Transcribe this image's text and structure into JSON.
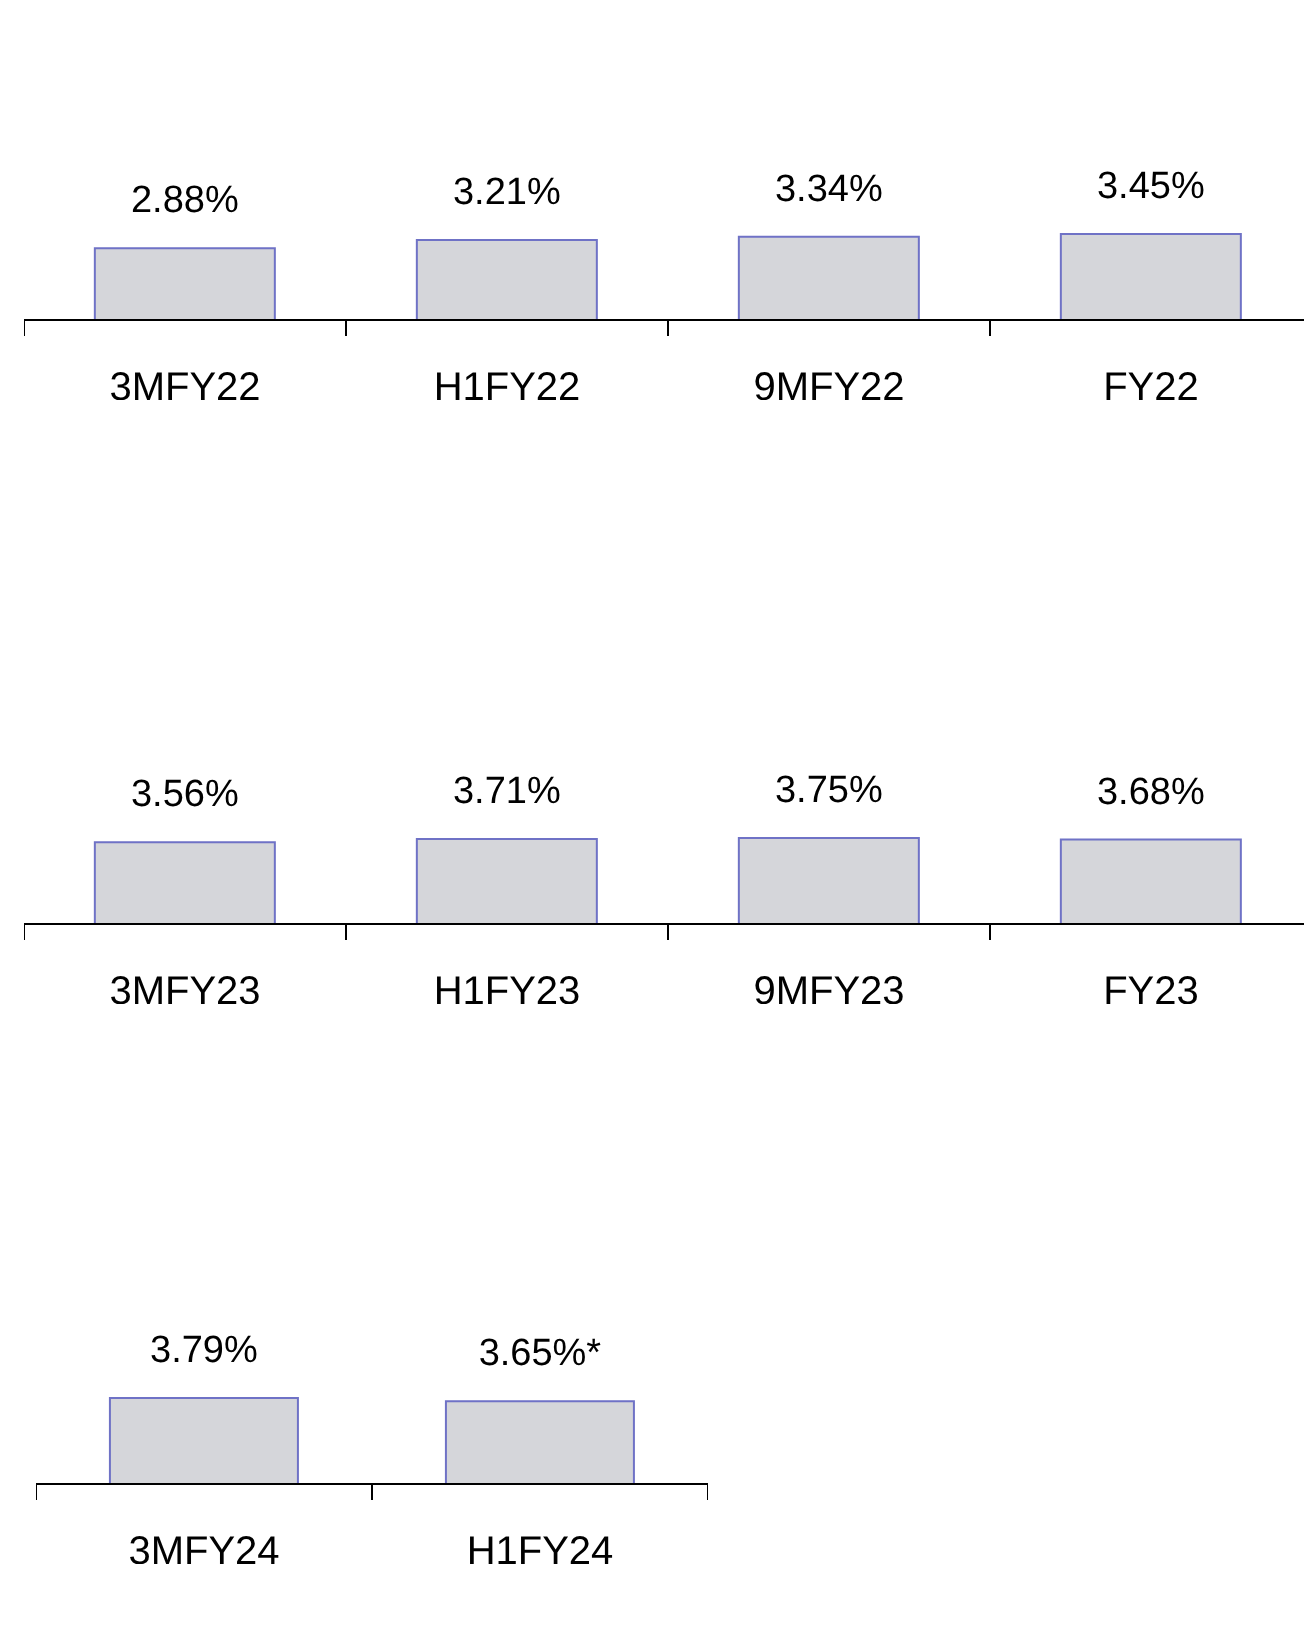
{
  "chart_data": [
    {
      "type": "bar",
      "categories": [
        "3MFY22",
        "H1FY22",
        "9MFY22",
        "FY22"
      ],
      "values": [
        2.88,
        3.21,
        3.34,
        3.45
      ],
      "value_labels": [
        "2.88%",
        "3.21%",
        "3.34%",
        "3.45%"
      ],
      "color": "#d5d6da",
      "tick_labels": "x"
    },
    {
      "type": "bar",
      "categories": [
        "3MFY23",
        "H1FY23",
        "9MFY23",
        "FY23"
      ],
      "values": [
        3.56,
        3.71,
        3.75,
        3.68
      ],
      "value_labels": [
        "3.56%",
        "3.71%",
        "3.75%",
        "3.68%"
      ],
      "color": "#d5d6da",
      "tick_labels": "x"
    },
    {
      "type": "bar",
      "categories": [
        "3MFY24",
        "H1FY24"
      ],
      "values": [
        3.79,
        3.65
      ],
      "value_labels": [
        "3.79%",
        "3.65%*"
      ],
      "color": "#d5d6da",
      "tick_labels": "x"
    }
  ]
}
